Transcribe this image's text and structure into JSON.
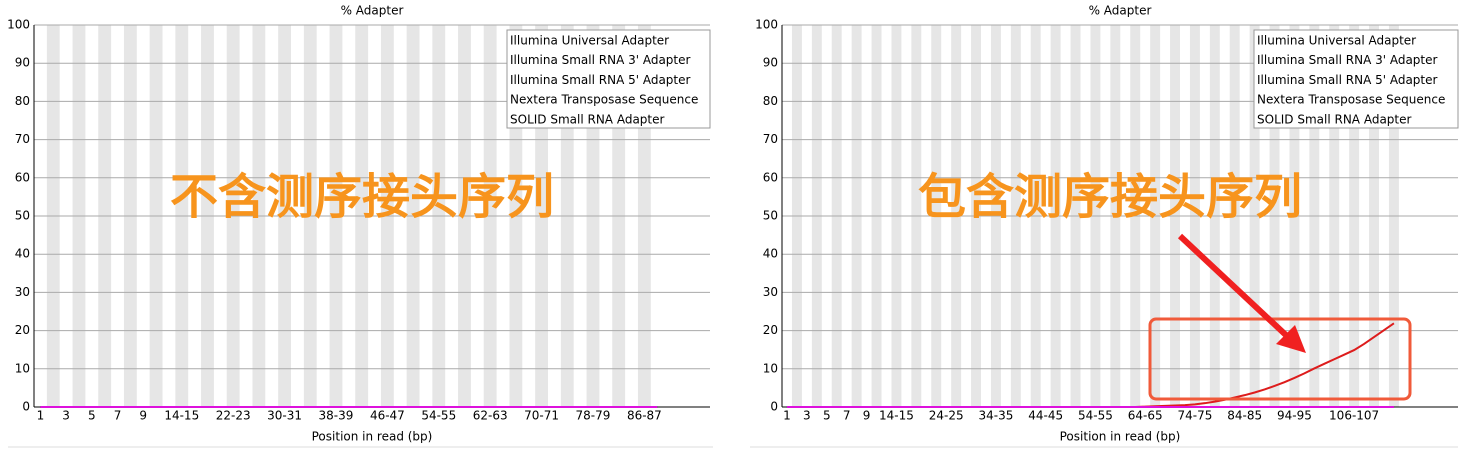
{
  "chart_data": [
    {
      "type": "line",
      "title": "% Adapter",
      "xlabel": "Position in read (bp)",
      "annotation": "不含测序接头序列",
      "categories": [
        "1",
        null,
        "3",
        null,
        "5",
        null,
        "7",
        null,
        "9",
        null,
        null,
        "14-15",
        null,
        null,
        null,
        "22-23",
        null,
        null,
        null,
        "30-31",
        null,
        null,
        null,
        "38-39",
        null,
        null,
        null,
        "46-47",
        null,
        null,
        null,
        "54-55",
        null,
        null,
        null,
        "62-63",
        null,
        null,
        null,
        "70-71",
        null,
        null,
        null,
        "78-79",
        null,
        null,
        null,
        "86-87",
        null
      ],
      "ylim": [
        0,
        100
      ],
      "yticks": [
        0,
        10,
        20,
        30,
        40,
        50,
        60,
        70,
        80,
        90,
        100
      ],
      "grid": true,
      "legend": "upper right",
      "series": [
        {
          "name": "Illumina Universal Adapter",
          "color": "#dd1c1c",
          "values": [
            0,
            0,
            0,
            0,
            0,
            0,
            0,
            0,
            0,
            0,
            0,
            0,
            0,
            0,
            0,
            0,
            0,
            0,
            0,
            0,
            0,
            0,
            0,
            0,
            0,
            0,
            0,
            0,
            0,
            0,
            0,
            0,
            0,
            0,
            0,
            0,
            0,
            0,
            0,
            0,
            0,
            0,
            0,
            0,
            0,
            0,
            0,
            0,
            0
          ]
        },
        {
          "name": "Illumina Small RNA 3' Adapter",
          "color": "#2222cc",
          "values": [
            0,
            0,
            0,
            0,
            0,
            0,
            0,
            0,
            0,
            0,
            0,
            0,
            0,
            0,
            0,
            0,
            0,
            0,
            0,
            0,
            0,
            0,
            0,
            0,
            0,
            0,
            0,
            0,
            0,
            0,
            0,
            0,
            0,
            0,
            0,
            0,
            0,
            0,
            0,
            0,
            0,
            0,
            0,
            0,
            0,
            0,
            0,
            0,
            0
          ]
        },
        {
          "name": "Illumina Small RNA 5' Adapter",
          "color": "#22cc22",
          "values": [
            0,
            0,
            0,
            0,
            0,
            0,
            0,
            0,
            0,
            0,
            0,
            0,
            0,
            0,
            0,
            0,
            0,
            0,
            0,
            0,
            0,
            0,
            0,
            0,
            0,
            0,
            0,
            0,
            0,
            0,
            0,
            0,
            0,
            0,
            0,
            0,
            0,
            0,
            0,
            0,
            0,
            0,
            0,
            0,
            0,
            0,
            0,
            0,
            0
          ]
        },
        {
          "name": "Nextera Transposase Sequence",
          "color": "#666666",
          "values": [
            0,
            0,
            0,
            0,
            0,
            0,
            0,
            0,
            0,
            0,
            0,
            0,
            0,
            0,
            0,
            0,
            0,
            0,
            0,
            0,
            0,
            0,
            0,
            0,
            0,
            0,
            0,
            0,
            0,
            0,
            0,
            0,
            0,
            0,
            0,
            0,
            0,
            0,
            0,
            0,
            0,
            0,
            0,
            0,
            0,
            0,
            0,
            0,
            0
          ]
        },
        {
          "name": "SOLID Small RNA Adapter",
          "color": "#dd11dd",
          "values": [
            0,
            0,
            0,
            0,
            0,
            0,
            0,
            0,
            0,
            0,
            0,
            0,
            0,
            0,
            0,
            0,
            0,
            0,
            0,
            0,
            0,
            0,
            0,
            0,
            0,
            0,
            0,
            0,
            0,
            0,
            0,
            0,
            0,
            0,
            0,
            0,
            0,
            0,
            0,
            0,
            0,
            0,
            0,
            0,
            0,
            0,
            0,
            0,
            0
          ]
        }
      ]
    },
    {
      "type": "line",
      "title": "% Adapter",
      "xlabel": "Position in read (bp)",
      "annotation": "包含测序接头序列",
      "categories": [
        "1",
        null,
        "3",
        null,
        "5",
        null,
        "7",
        null,
        "9",
        null,
        null,
        "14-15",
        null,
        null,
        null,
        null,
        "24-25",
        null,
        null,
        null,
        null,
        "34-35",
        null,
        null,
        null,
        null,
        "44-45",
        null,
        null,
        null,
        null,
        "54-55",
        null,
        null,
        null,
        null,
        "64-65",
        null,
        null,
        null,
        null,
        "74-75",
        null,
        null,
        null,
        null,
        "84-85",
        null,
        null,
        null,
        null,
        "94-95",
        null,
        null,
        null,
        null,
        null,
        "106-107",
        null,
        null,
        null,
        null
      ],
      "ylim": [
        0,
        100
      ],
      "yticks": [
        0,
        10,
        20,
        30,
        40,
        50,
        60,
        70,
        80,
        90,
        100
      ],
      "grid": true,
      "legend": "upper right",
      "series": [
        {
          "name": "Illumina Universal Adapter",
          "color": "#dd1c1c",
          "values": [
            0,
            0,
            0,
            0,
            0,
            0,
            0,
            0,
            0,
            0,
            0,
            0,
            0,
            0,
            0,
            0,
            0,
            0,
            0,
            0,
            0,
            0,
            0,
            0,
            0,
            0,
            0,
            0,
            0,
            0,
            0,
            0,
            0,
            0,
            0,
            0,
            0.1,
            0.2,
            0.3,
            0.4,
            0.5,
            0.7,
            1.0,
            1.4,
            1.9,
            2.5,
            3.1,
            3.8,
            4.6,
            5.5,
            6.5,
            7.6,
            8.8,
            10.1,
            11.3,
            12.5,
            13.7,
            14.9,
            16.5,
            18.3,
            20.1,
            21.9
          ]
        },
        {
          "name": "Illumina Small RNA 3' Adapter",
          "color": "#2222cc",
          "values": [
            0,
            0,
            0,
            0,
            0,
            0,
            0,
            0,
            0,
            0,
            0,
            0,
            0,
            0,
            0,
            0,
            0,
            0,
            0,
            0,
            0,
            0,
            0,
            0,
            0,
            0,
            0,
            0,
            0,
            0,
            0,
            0,
            0,
            0,
            0,
            0,
            0,
            0,
            0,
            0,
            0,
            0,
            0,
            0,
            0,
            0,
            0,
            0,
            0,
            0,
            0,
            0,
            0,
            0,
            0,
            0,
            0,
            0,
            0,
            0,
            0,
            0
          ]
        },
        {
          "name": "Illumina Small RNA 5' Adapter",
          "color": "#22cc22",
          "values": [
            0,
            0,
            0,
            0,
            0,
            0,
            0,
            0,
            0,
            0,
            0,
            0,
            0,
            0,
            0,
            0,
            0,
            0,
            0,
            0,
            0,
            0,
            0,
            0,
            0,
            0,
            0,
            0,
            0,
            0,
            0,
            0,
            0,
            0,
            0,
            0,
            0,
            0,
            0,
            0,
            0,
            0,
            0,
            0,
            0,
            0,
            0,
            0,
            0,
            0,
            0,
            0,
            0,
            0,
            0,
            0,
            0,
            0,
            0,
            0,
            0,
            0
          ]
        },
        {
          "name": "Nextera Transposase Sequence",
          "color": "#666666",
          "values": [
            0,
            0,
            0,
            0,
            0,
            0,
            0,
            0,
            0,
            0,
            0,
            0,
            0,
            0,
            0,
            0,
            0,
            0,
            0,
            0,
            0,
            0,
            0,
            0,
            0,
            0,
            0,
            0,
            0,
            0,
            0,
            0,
            0,
            0,
            0,
            0,
            0,
            0,
            0,
            0,
            0,
            0,
            0,
            0,
            0,
            0,
            0,
            0,
            0,
            0,
            0,
            0,
            0,
            0,
            0,
            0,
            0,
            0,
            0,
            0,
            0,
            0
          ]
        },
        {
          "name": "SOLID Small RNA Adapter",
          "color": "#dd11dd",
          "values": [
            0,
            0,
            0,
            0,
            0,
            0,
            0,
            0,
            0,
            0,
            0,
            0,
            0,
            0,
            0,
            0,
            0,
            0,
            0,
            0,
            0,
            0,
            0,
            0,
            0,
            0,
            0,
            0,
            0,
            0,
            0,
            0,
            0,
            0,
            0,
            0,
            0,
            0,
            0,
            0,
            0,
            0,
            0,
            0,
            0,
            0,
            0,
            0,
            0,
            0,
            0,
            0,
            0,
            0,
            0,
            0,
            0,
            0,
            0,
            0,
            0,
            0
          ]
        }
      ]
    }
  ]
}
